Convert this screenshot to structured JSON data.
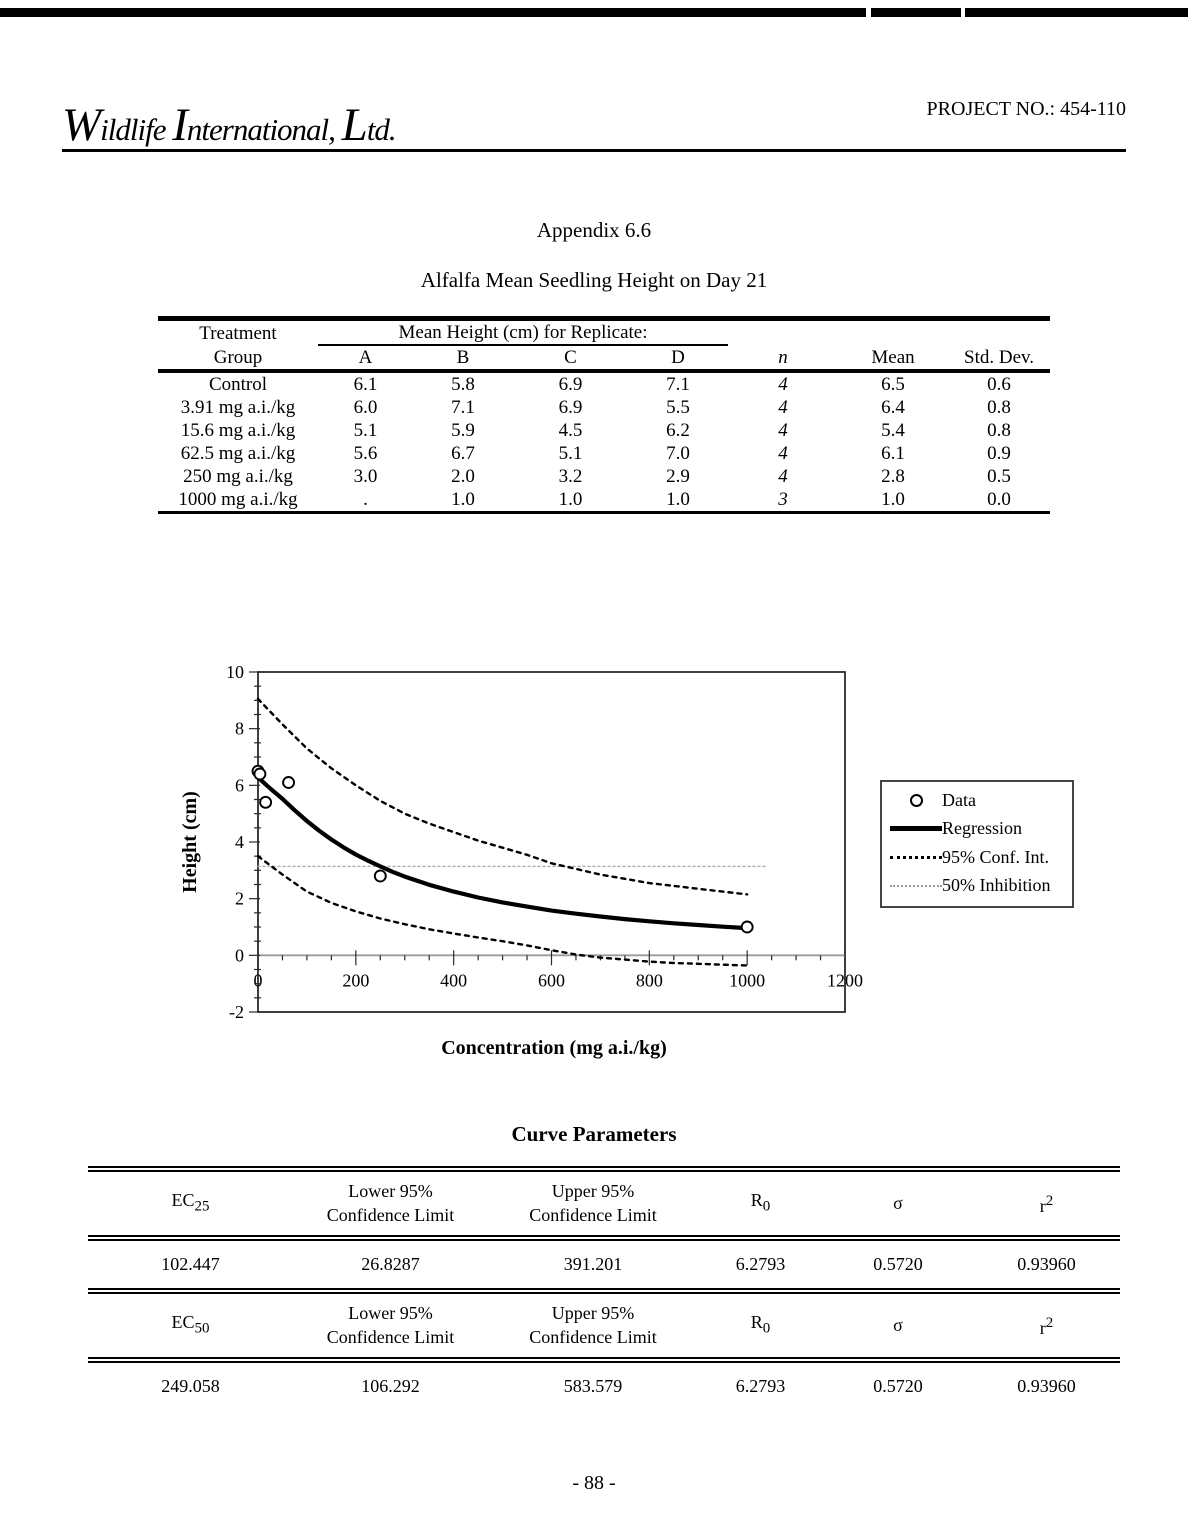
{
  "page": {
    "project_label": "PROJECT NO.:  454-110",
    "logo": {
      "l1": "W",
      "t1": "ildlife ",
      "l2": "I",
      "t2": "nternational, ",
      "l3": "L",
      "t3": "td."
    },
    "appendix_title": "Appendix 6.6",
    "table_title": "Alfalfa Mean Seedling Height on Day 21",
    "page_number": "- 88 -"
  },
  "summary_table": {
    "header": {
      "treatment_line1": "Treatment",
      "treatment_line2": "Group",
      "replicate_span": "Mean Height (cm) for Replicate:",
      "rep_a": "A",
      "rep_b": "B",
      "rep_c": "C",
      "rep_d": "D",
      "n": "n",
      "mean": "Mean",
      "std": "Std. Dev."
    },
    "rows": [
      [
        "Control",
        "6.1",
        "5.8",
        "6.9",
        "7.1",
        "4",
        "6.5",
        "0.6"
      ],
      [
        "3.91 mg a.i./kg",
        "6.0",
        "7.1",
        "6.9",
        "5.5",
        "4",
        "6.4",
        "0.8"
      ],
      [
        "15.6 mg a.i./kg",
        "5.1",
        "5.9",
        "4.5",
        "6.2",
        "4",
        "5.4",
        "0.8"
      ],
      [
        "62.5 mg a.i./kg",
        "5.6",
        "6.7",
        "5.1",
        "7.0",
        "4",
        "6.1",
        "0.9"
      ],
      [
        "250 mg a.i./kg",
        "3.0",
        "2.0",
        "3.2",
        "2.9",
        "4",
        "2.8",
        "0.5"
      ],
      [
        "1000 mg a.i./kg",
        ".",
        "1.0",
        "1.0",
        "1.0",
        "3",
        "1.0",
        "0.0"
      ]
    ]
  },
  "chart_data": {
    "type": "scatter",
    "title": "",
    "xlabel": "Concentration (mg a.i./kg)",
    "ylabel": "Height (cm)",
    "xlim": [
      0,
      1200
    ],
    "ylim": [
      -2,
      10
    ],
    "x_major_ticks": [
      0,
      200,
      400,
      600,
      800,
      1000,
      1200
    ],
    "x_minor_step": 50,
    "y_major_ticks": [
      -2,
      0,
      2,
      4,
      6,
      8,
      10
    ],
    "y_minor_step": 0.5,
    "grid": false,
    "legend_position": "right",
    "legend": [
      "Data",
      "Regression",
      "95% Conf. Int.",
      "50% Inhibition"
    ],
    "series": [
      {
        "name": "50% Inhibition",
        "style": "dot-light",
        "points": [
          [
            0,
            3.14
          ],
          [
            1040,
            3.14
          ]
        ]
      },
      {
        "name": "95% Conf. Int. (upper)",
        "style": "dashed",
        "points": [
          [
            0,
            9.05
          ],
          [
            50,
            8.15
          ],
          [
            100,
            7.3
          ],
          [
            150,
            6.6
          ],
          [
            200,
            6.0
          ],
          [
            250,
            5.45
          ],
          [
            300,
            5.0
          ],
          [
            350,
            4.65
          ],
          [
            400,
            4.35
          ],
          [
            450,
            4.05
          ],
          [
            500,
            3.8
          ],
          [
            550,
            3.55
          ],
          [
            600,
            3.25
          ],
          [
            650,
            3.05
          ],
          [
            700,
            2.85
          ],
          [
            750,
            2.7
          ],
          [
            800,
            2.55
          ],
          [
            850,
            2.45
          ],
          [
            900,
            2.35
          ],
          [
            950,
            2.25
          ],
          [
            1000,
            2.15
          ]
        ]
      },
      {
        "name": "95% Conf. Int. (lower)",
        "style": "dashed",
        "points": [
          [
            0,
            3.5
          ],
          [
            50,
            2.85
          ],
          [
            100,
            2.25
          ],
          [
            150,
            1.85
          ],
          [
            200,
            1.55
          ],
          [
            250,
            1.3
          ],
          [
            300,
            1.1
          ],
          [
            350,
            0.92
          ],
          [
            400,
            0.77
          ],
          [
            450,
            0.63
          ],
          [
            500,
            0.5
          ],
          [
            550,
            0.35
          ],
          [
            600,
            0.18
          ],
          [
            650,
            0.03
          ],
          [
            700,
            -0.08
          ],
          [
            750,
            -0.15
          ],
          [
            800,
            -0.22
          ],
          [
            850,
            -0.27
          ],
          [
            900,
            -0.3
          ],
          [
            950,
            -0.33
          ],
          [
            1000,
            -0.36
          ]
        ]
      },
      {
        "name": "Regression",
        "style": "solid",
        "points": [
          [
            0,
            6.28
          ],
          [
            25,
            5.89
          ],
          [
            50,
            5.52
          ],
          [
            75,
            5.12
          ],
          [
            100,
            4.74
          ],
          [
            125,
            4.4
          ],
          [
            150,
            4.09
          ],
          [
            175,
            3.81
          ],
          [
            200,
            3.56
          ],
          [
            225,
            3.34
          ],
          [
            250,
            3.14
          ],
          [
            275,
            2.95
          ],
          [
            300,
            2.78
          ],
          [
            350,
            2.49
          ],
          [
            400,
            2.25
          ],
          [
            450,
            2.04
          ],
          [
            500,
            1.87
          ],
          [
            550,
            1.72
          ],
          [
            600,
            1.58
          ],
          [
            650,
            1.47
          ],
          [
            700,
            1.37
          ],
          [
            750,
            1.28
          ],
          [
            800,
            1.2
          ],
          [
            850,
            1.13
          ],
          [
            900,
            1.07
          ],
          [
            950,
            1.01
          ],
          [
            1000,
            0.96
          ]
        ]
      },
      {
        "name": "Data",
        "style": "scatter",
        "points": [
          [
            0,
            6.5
          ],
          [
            3.91,
            6.4
          ],
          [
            15.6,
            5.4
          ],
          [
            62.5,
            6.1
          ],
          [
            250,
            2.8
          ],
          [
            1000,
            1.0
          ]
        ]
      }
    ]
  },
  "curve_parameters": {
    "title": "Curve Parameters",
    "header": {
      "lower_line1": "Lower 95%",
      "lower_line2": "Confidence Limit",
      "upper_line1": "Upper 95%",
      "upper_line2": "Confidence Limit",
      "r0_base": "R",
      "r0_sub": "0",
      "sigma": "σ",
      "r2_base": "r",
      "r2_sup": "2"
    },
    "table1": {
      "ec_base": "EC",
      "ec_sub": "25",
      "values": [
        "102.447",
        "26.8287",
        "391.201",
        "6.2793",
        "0.5720",
        "0.93960"
      ]
    },
    "table2": {
      "ec_base": "EC",
      "ec_sub": "50",
      "values": [
        "249.058",
        "106.292",
        "583.579",
        "6.2793",
        "0.5720",
        "0.93960"
      ]
    }
  }
}
